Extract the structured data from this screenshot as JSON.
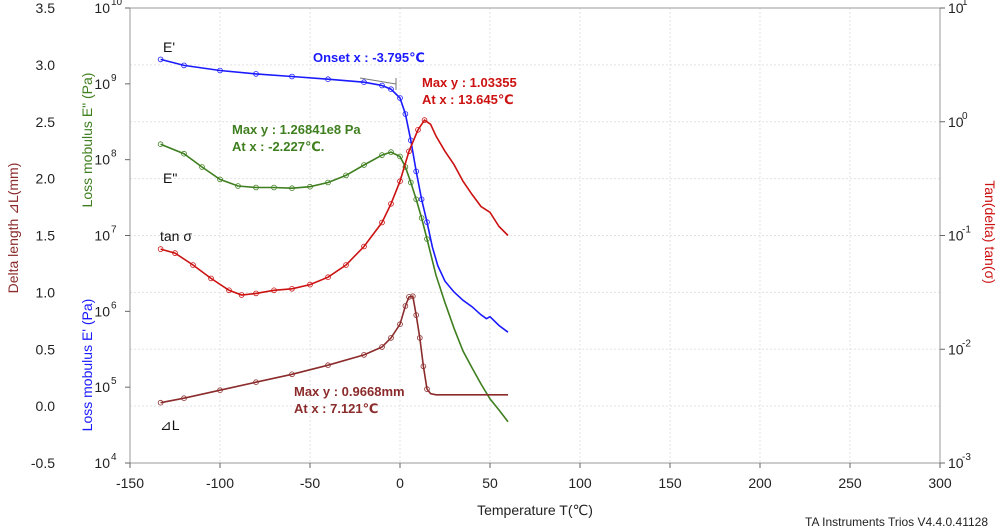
{
  "chart_data": {
    "type": "line",
    "title": "",
    "xlabel": "Temperature T(℃)",
    "xlim": [
      -150,
      300
    ],
    "x_ticks": [
      "-150",
      "-100",
      "-50",
      "0",
      "50",
      "100",
      "150",
      "200",
      "250",
      "300"
    ],
    "axes": {
      "left_outer": {
        "label": "Delta length ⊿L(mm)",
        "color": "#8b2b2b",
        "lim": [
          -0.5,
          3.5
        ],
        "ticks": [
          "-0.5",
          "0.0",
          "0.5",
          "1.0",
          "1.5",
          "2.0",
          "2.5",
          "3.0",
          "3.5"
        ]
      },
      "left_inner": {
        "label_storage": "Loss mobulus E' (Pa)",
        "label_loss": "Loss mobulus E\" (Pa)",
        "color_storage": "#1a1aff",
        "color_loss": "#3f7f1f",
        "scale": "log",
        "lim_exp": [
          4,
          10
        ],
        "ticks": [
          "10",
          "10",
          "10",
          "10",
          "10",
          "10",
          "10"
        ],
        "tick_exps": [
          "4",
          "5",
          "6",
          "7",
          "8",
          "9",
          "10"
        ]
      },
      "right": {
        "label": "Tan(delta) tan(σ)",
        "color": "#cc1111",
        "scale": "log",
        "lim_exp": [
          -3,
          1
        ],
        "ticks": [
          "10",
          "10",
          "10",
          "10",
          "10"
        ],
        "tick_exps": [
          "-3",
          "-2",
          "-1",
          "0",
          "1"
        ]
      }
    },
    "grid": true,
    "series": [
      {
        "name": "E'",
        "axis": "left_inner",
        "color": "#1a1aff",
        "x": [
          -133,
          -120,
          -100,
          -80,
          -60,
          -40,
          -20,
          -10,
          -5,
          0,
          3,
          6,
          9,
          12,
          15,
          18,
          21,
          25,
          30,
          35,
          40,
          45,
          48,
          50,
          55,
          60
        ],
        "y": [
          2100000000.0,
          1750000000.0,
          1500000000.0,
          1350000000.0,
          1250000000.0,
          1150000000.0,
          1050000000.0,
          950000000.0,
          850000000.0,
          650000000.0,
          400000000.0,
          180000000.0,
          70000000.0,
          30000000.0,
          15000000.0,
          7000000.0,
          4000000.0,
          2500000.0,
          1800000.0,
          1400000.0,
          1150000.0,
          900000.0,
          800000.0,
          850000.0,
          650000.0,
          530000.0
        ]
      },
      {
        "name": "E\"",
        "axis": "left_inner",
        "color": "#3f7f1f",
        "x": [
          -133,
          -120,
          -110,
          -100,
          -90,
          -80,
          -70,
          -60,
          -50,
          -40,
          -30,
          -20,
          -10,
          -5,
          0,
          3,
          6,
          9,
          12,
          15,
          20,
          25,
          30,
          35,
          40,
          45,
          50,
          55,
          60
        ],
        "y": [
          160000000.0,
          120000000.0,
          80000000.0,
          55000000.0,
          45000000.0,
          43000000.0,
          43000000.0,
          42000000.0,
          44000000.0,
          50000000.0,
          62000000.0,
          85000000.0,
          115000000.0,
          126000000.0,
          110000000.0,
          80000000.0,
          50000000.0,
          30000000.0,
          17000000.0,
          9000000.0,
          3000000.0,
          1300000.0,
          600000.0,
          300000.0,
          180000.0,
          110000.0,
          70000.0,
          50000.0,
          35000.0
        ]
      },
      {
        "name": "tan σ",
        "axis": "right",
        "color": "#cc1111",
        "x": [
          -133,
          -125,
          -115,
          -105,
          -95,
          -88,
          -80,
          -70,
          -60,
          -50,
          -40,
          -30,
          -20,
          -10,
          -5,
          0,
          5,
          10,
          13.6,
          17,
          20,
          25,
          30,
          35,
          40,
          45,
          50,
          55,
          60
        ],
        "y": [
          0.076,
          0.07,
          0.055,
          0.042,
          0.033,
          0.03,
          0.031,
          0.033,
          0.034,
          0.037,
          0.043,
          0.055,
          0.08,
          0.13,
          0.19,
          0.3,
          0.55,
          0.85,
          1.0336,
          0.95,
          0.75,
          0.55,
          0.42,
          0.3,
          0.23,
          0.18,
          0.16,
          0.12,
          0.1
        ]
      },
      {
        "name": "⊿L",
        "axis": "left_outer",
        "color": "#8b2b2b",
        "x": [
          -133,
          -120,
          -100,
          -80,
          -60,
          -40,
          -20,
          -10,
          -5,
          0,
          3,
          5,
          7.1,
          9,
          11,
          13,
          15,
          17,
          20,
          30,
          40,
          50,
          60
        ],
        "y": [
          0.03,
          0.07,
          0.14,
          0.21,
          0.28,
          0.36,
          0.45,
          0.52,
          0.6,
          0.72,
          0.88,
          0.96,
          0.9668,
          0.8,
          0.6,
          0.35,
          0.15,
          0.11,
          0.1,
          0.1,
          0.1,
          0.1,
          0.1
        ]
      }
    ],
    "curve_labels": [
      "E'",
      "E\"",
      "tan σ",
      "⊿L"
    ],
    "annotations": {
      "onset": "Onset x : -3.795℃",
      "tan_max_y": "Max y : 1.03355",
      "tan_max_x": "At x : 13.645℃",
      "loss_max_y": "Max y : 1.26841e8 Pa",
      "loss_max_x": "At x : -2.227℃.",
      "dl_max_y": "Max y : 0.9668mm",
      "dl_max_x": "At x : 7.121℃"
    },
    "footer": "TA Instruments Trios V4.4.0.41128"
  }
}
